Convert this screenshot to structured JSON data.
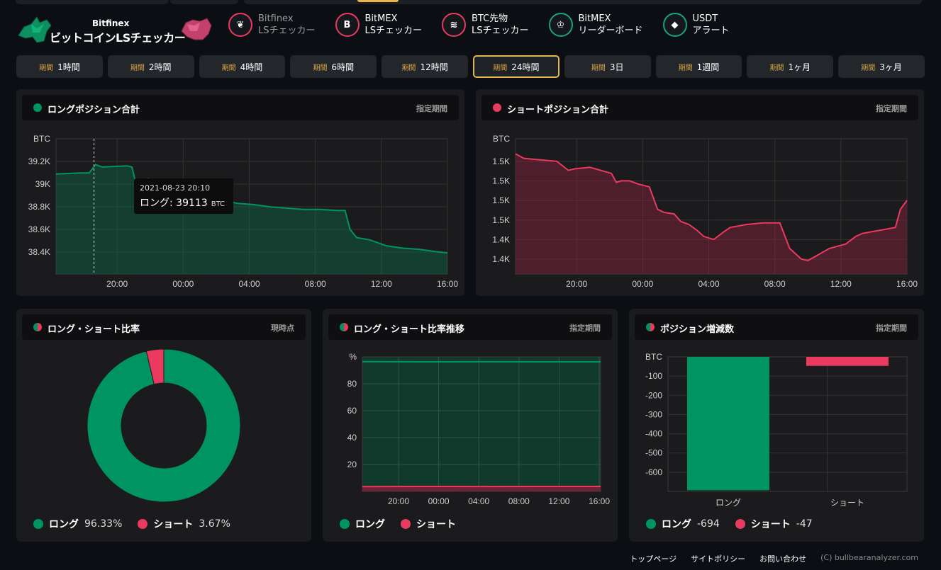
{
  "logo": {
    "brand": "Bitfinex",
    "title": "ビットコインLSチェッカー"
  },
  "nav": [
    {
      "line1": "Bitfinex",
      "line2": "LSチェッカー",
      "icon": "leaf-icon",
      "color": "#ea3a5f",
      "glyph": "❦",
      "active": false
    },
    {
      "line1": "BitMEX",
      "line2": "LSチェッカー",
      "icon": "bitmex-b-icon",
      "color": "#ea3a5f",
      "glyph": "B",
      "active": true
    },
    {
      "line1": "BTC先物",
      "line2": "LSチェッカー",
      "icon": "coins-icon",
      "color": "#ea3a5f",
      "glyph": "≋",
      "active": true
    },
    {
      "line1": "BitMEX",
      "line2": "リーダーボード",
      "icon": "trophy-icon",
      "color": "#1aa37a",
      "glyph": "♔",
      "active": true
    },
    {
      "line1": "USDT",
      "line2": "アラート",
      "icon": "tether-gem-icon",
      "color": "#1aa37a",
      "glyph": "◆",
      "active": true
    }
  ],
  "period_prefix": "期間",
  "periods": [
    "1時間",
    "2時間",
    "4時間",
    "6時間",
    "12時間",
    "24時間",
    "3日",
    "1週間",
    "1ヶ月",
    "3ヶ月"
  ],
  "active_period": "24時間",
  "long_panel": {
    "title": "ロングポジション合計",
    "tag": "指定期間",
    "color": "#009463"
  },
  "short_panel": {
    "title": "ショートポジション合計",
    "tag": "指定期間",
    "color": "#ea3a5f"
  },
  "ratio_panel": {
    "title": "ロング・ショート比率",
    "tag": "現時点"
  },
  "trend_panel": {
    "title": "ロング・ショート比率推移",
    "tag": "指定期間"
  },
  "change_panel": {
    "title": "ポジション増減数",
    "tag": "指定期間"
  },
  "tooltip": {
    "date": "2021-08-23 20:10",
    "label": "ロング: 39113",
    "unit": "BTC"
  },
  "labels": {
    "long": "ロング",
    "short": "ショート"
  },
  "ratio_values": {
    "long": "96.33%",
    "short": "3.67%"
  },
  "change_values": {
    "long": "-694",
    "short": "-47"
  },
  "footer": {
    "top": "トップページ",
    "policy": "サイトポリシー",
    "contact": "お問い合わせ",
    "copyright": "(C) bullbearanalyzer.com"
  },
  "chart_data": [
    {
      "type": "area",
      "name": "long-total",
      "title": "",
      "ylabel": "BTC",
      "color": "#009463",
      "x_ticks": [
        "20:00",
        "00:00",
        "04:00",
        "08:00",
        "12:00",
        "16:00"
      ],
      "y_ticks": [
        "39.2K",
        "39K",
        "38.8K",
        "38.6K",
        "38.4K"
      ],
      "ylim": [
        38200,
        39350
      ],
      "x_hours": [
        0,
        1.5,
        2.0,
        2.4,
        2.8,
        3.2,
        4.3,
        4.6,
        4.8,
        5.2,
        5.6,
        6.0,
        6.5,
        6.8,
        7.4,
        8.0,
        9.0,
        10.0,
        11.0,
        12.0,
        13.0,
        14.0,
        15.0,
        16.0,
        17.0,
        17.5,
        17.8,
        18.2,
        19.0,
        20.0,
        21.0,
        22.0,
        23.0,
        23.7
      ],
      "values": [
        39050,
        39060,
        39060,
        39130,
        39110,
        39113,
        39120,
        39110,
        38990,
        39000,
        39010,
        38960,
        38980,
        38870,
        38840,
        38830,
        38820,
        38830,
        38800,
        38790,
        38770,
        38760,
        38750,
        38750,
        38740,
        38740,
        38580,
        38510,
        38490,
        38440,
        38420,
        38410,
        38390,
        38380
      ]
    },
    {
      "type": "area",
      "name": "short-total",
      "title": "",
      "ylabel": "BTC",
      "color": "#ea3a5f",
      "x_ticks": [
        "20:00",
        "00:00",
        "04:00",
        "08:00",
        "12:00",
        "16:00"
      ],
      "y_ticks": [
        "1.5K",
        "1.5K",
        "1.5K",
        "1.5K",
        "1.4K",
        "1.4K"
      ],
      "ylim": [
        1375,
        1465
      ],
      "x_hours": [
        0,
        0.5,
        1.5,
        2.5,
        3.2,
        3.6,
        4.5,
        5.8,
        6.1,
        6.4,
        6.9,
        7.4,
        8.1,
        8.6,
        9.0,
        9.6,
        10.0,
        10.5,
        11.0,
        11.4,
        12.0,
        12.6,
        13.0,
        14.0,
        15.0,
        16.0,
        16.6,
        17.0,
        17.3,
        17.7,
        18.2,
        19.0,
        20.0,
        20.6,
        21.0,
        22.0,
        23.0,
        23.3,
        23.7
      ],
      "values": [
        1455,
        1452,
        1451,
        1450,
        1444,
        1445,
        1446,
        1442,
        1436,
        1437,
        1437,
        1435,
        1433,
        1418,
        1416,
        1415,
        1410,
        1408,
        1404,
        1400,
        1398,
        1403,
        1406,
        1408,
        1409,
        1409,
        1392,
        1388,
        1385,
        1384,
        1387,
        1392,
        1395,
        1400,
        1402,
        1404,
        1406,
        1418,
        1424
      ]
    },
    {
      "type": "pie",
      "name": "long-short-ratio",
      "categories": [
        "ロング",
        "ショート"
      ],
      "values": [
        96.33,
        3.67
      ],
      "colors": [
        "#009463",
        "#ea3a5f"
      ]
    },
    {
      "type": "area",
      "name": "ratio-trend",
      "ylabel": "%",
      "x_ticks": [
        "20:00",
        "00:00",
        "04:00",
        "08:00",
        "12:00",
        "16:00"
      ],
      "y_ticks": [
        "80",
        "60",
        "40",
        "20"
      ],
      "ylim": [
        0,
        100
      ],
      "series": [
        {
          "name": "ロング",
          "values": [
            96.4,
            96.3,
            96.35,
            96.3,
            96.33
          ]
        },
        {
          "name": "ショート",
          "values": [
            3.6,
            3.7,
            3.65,
            3.7,
            3.67
          ]
        }
      ]
    },
    {
      "type": "bar",
      "name": "position-change",
      "ylabel": "BTC",
      "categories": [
        "ロング",
        "ショート"
      ],
      "values": [
        -694,
        -47
      ],
      "y_ticks": [
        "-100",
        "-200",
        "-300",
        "-400",
        "-500",
        "-600"
      ],
      "ylim": [
        -700,
        0
      ],
      "colors": [
        "#009463",
        "#ea3a5f"
      ]
    }
  ]
}
